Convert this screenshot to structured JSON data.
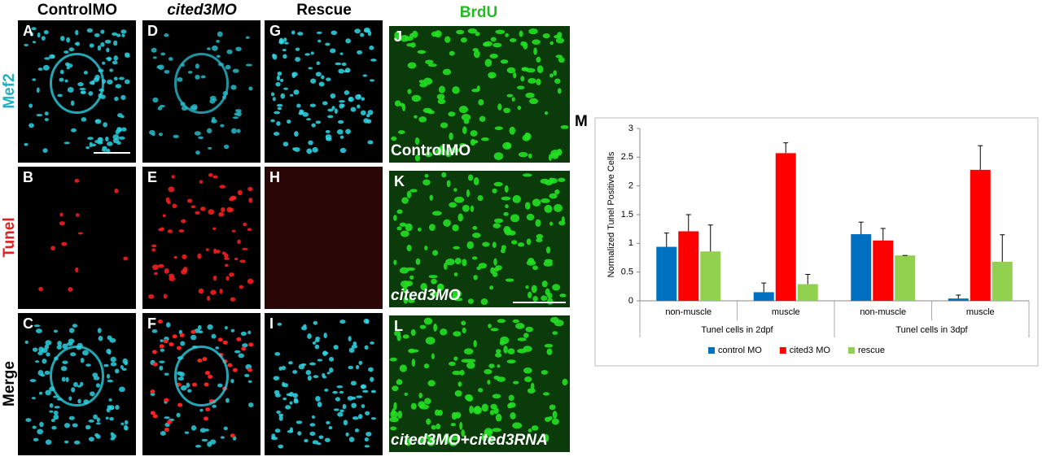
{
  "figure": {
    "column_headers": [
      "ControlMO",
      "cited3MO",
      "Rescue"
    ],
    "row_labels": [
      "Mef2",
      "Tunel",
      "Merge"
    ],
    "panel_letters": [
      [
        "A",
        "D",
        "G"
      ],
      [
        "B",
        "E",
        "H"
      ],
      [
        "C",
        "F",
        "I"
      ]
    ],
    "brdu_header": "BrdU",
    "brdu_letters": [
      "J",
      "K",
      "L"
    ],
    "brdu_captions": [
      "ControlMO",
      "cited3MO",
      "cited3MO+cited3RNA"
    ],
    "chart_letter": "M"
  },
  "chart_data": {
    "type": "bar",
    "y_label": "Normalized Tunel Positive Cells",
    "categories": [
      "non-muscle",
      "muscle",
      "non-muscle",
      "muscle"
    ],
    "groups": [
      "Tunel cells in 2dpf",
      "Tunel cells in 3dpf"
    ],
    "series": [
      {
        "name": "control MO",
        "color": "#0070c0",
        "values": [
          0.94,
          0.15,
          1.16,
          0.04
        ],
        "errors": [
          0.24,
          0.16,
          0.21,
          0.06
        ]
      },
      {
        "name": "cited3 MO",
        "color": "#ff0000",
        "values": [
          1.21,
          2.57,
          1.05,
          2.28
        ],
        "errors": [
          0.29,
          0.18,
          0.21,
          0.42
        ]
      },
      {
        "name": "rescue",
        "color": "#92d050",
        "values": [
          0.86,
          0.29,
          0.79,
          0.68
        ],
        "errors": [
          0.46,
          0.17,
          0.0,
          0.47
        ]
      }
    ],
    "ylim": [
      0,
      3
    ],
    "yticks": [
      0,
      0.5,
      1,
      1.5,
      2,
      2.5,
      3
    ],
    "grid": false,
    "legend": "bottom"
  }
}
